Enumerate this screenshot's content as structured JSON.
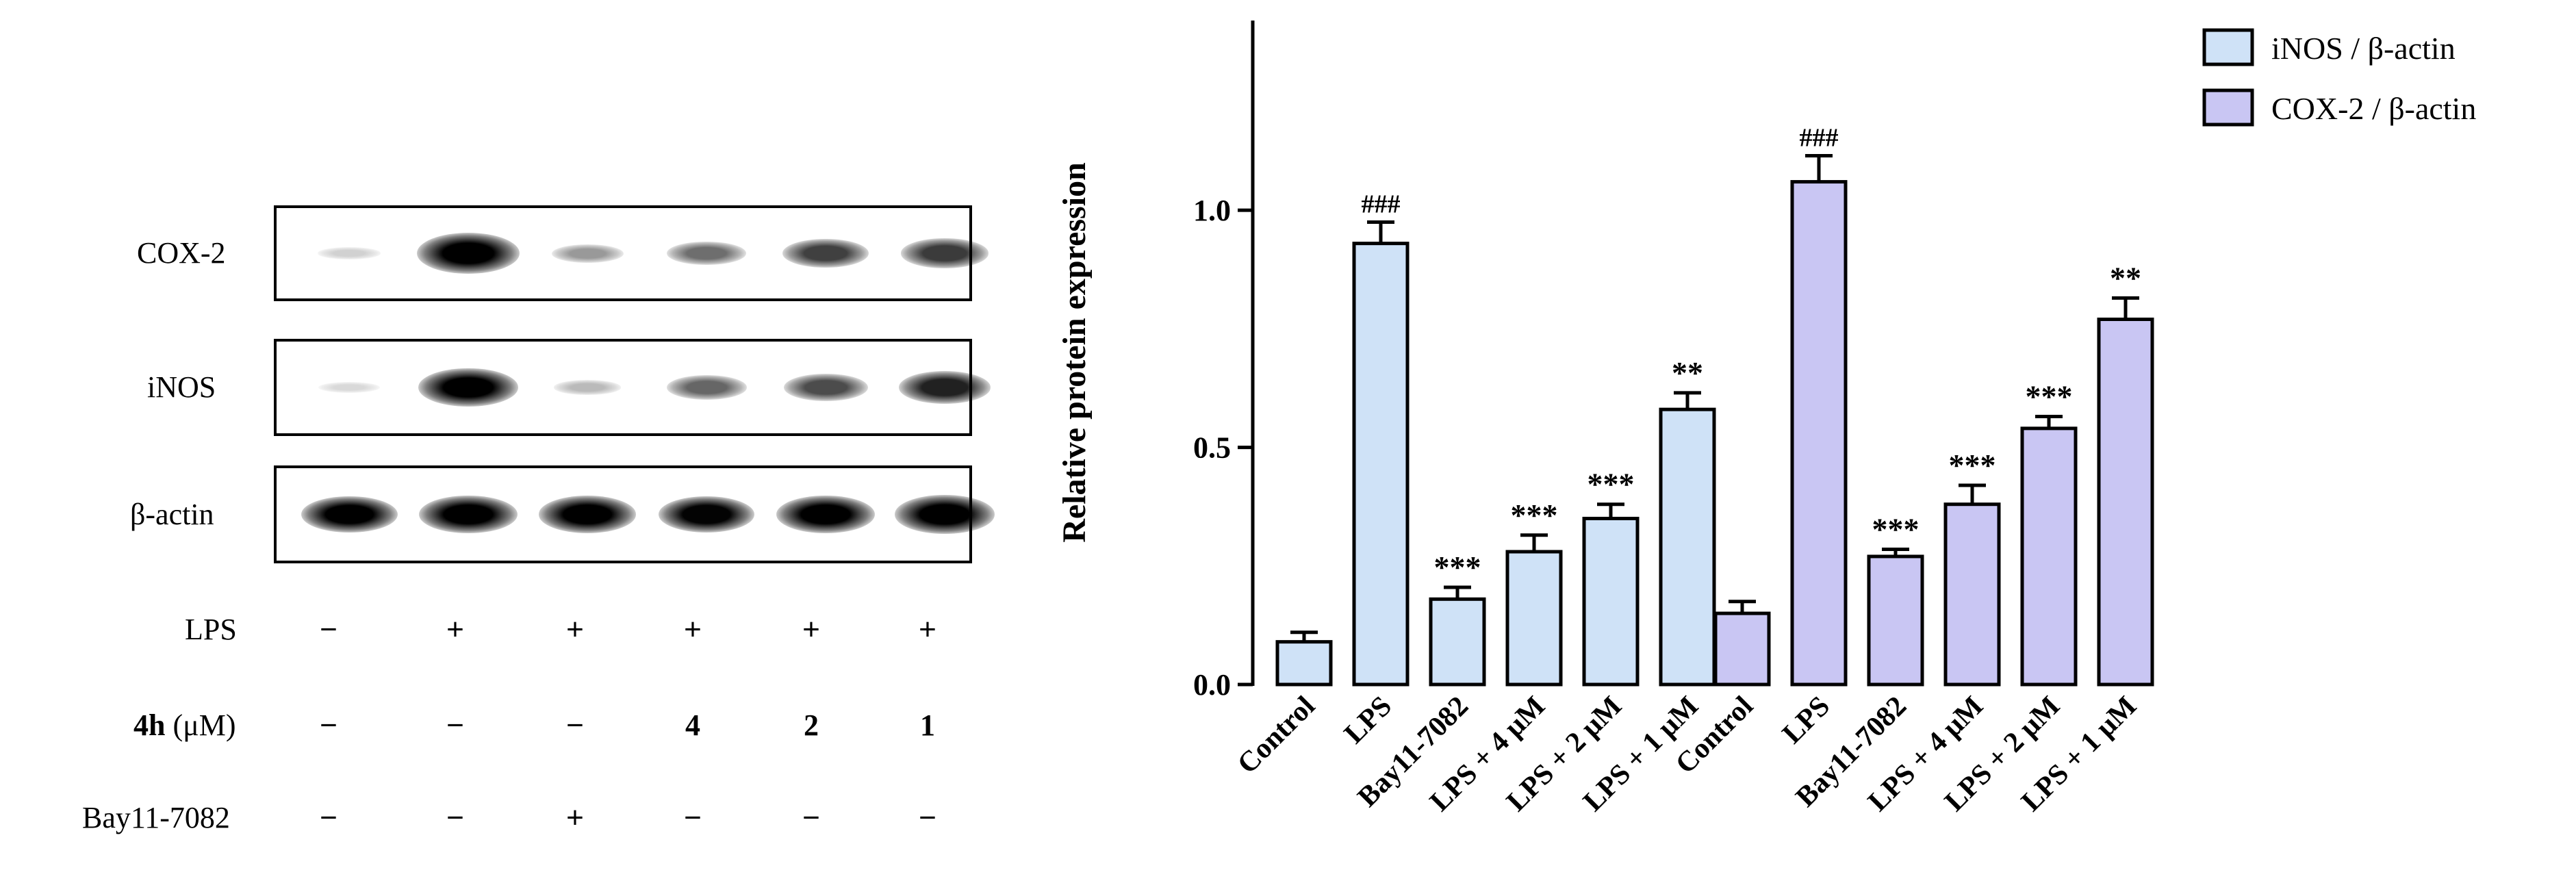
{
  "blot": {
    "row_labels": [
      "COX-2",
      "iNOS",
      "β-actin"
    ],
    "bands": {
      "COX-2": [
        0.03,
        1.0,
        0.25,
        0.42,
        0.6,
        0.62
      ],
      "iNOS": [
        0.0,
        0.92,
        0.12,
        0.45,
        0.55,
        0.72
      ],
      "β-actin": [
        0.85,
        0.9,
        0.88,
        0.84,
        0.9,
        0.92
      ]
    },
    "treatments": [
      {
        "label": "LPS",
        "values": [
          "−",
          "+",
          "+",
          "+",
          "+",
          "+"
        ]
      },
      {
        "label_bold": "4h",
        "label_rest": " (μM)",
        "values": [
          "−",
          "−",
          "−",
          "4",
          "2",
          "1"
        ]
      },
      {
        "label": "Bay11-7082",
        "values": [
          "−",
          "−",
          "+",
          "−",
          "−",
          "−"
        ]
      }
    ]
  },
  "chart_data": {
    "type": "bar",
    "ylabel": "Relative protein expression",
    "ylim": [
      0.0,
      1.4
    ],
    "yticks": [
      "0.0",
      "0.5",
      "1.0"
    ],
    "ytick_values": [
      0.0,
      0.5,
      1.0
    ],
    "categories": [
      "Control",
      "LPS",
      "Bay11-7082",
      "LPS + 4 μM",
      "LPS + 2 μM",
      "LPS + 1 μM"
    ],
    "legend_position": "top-right",
    "series": [
      {
        "name": "iNOS / β-actin",
        "color": "#cfe2f7",
        "values": [
          0.09,
          0.93,
          0.18,
          0.28,
          0.35,
          0.58
        ],
        "errors": [
          0.02,
          0.045,
          0.025,
          0.035,
          0.03,
          0.035
        ],
        "annotations": [
          "",
          "###",
          "***",
          "***",
          "***",
          "**"
        ]
      },
      {
        "name": "COX-2 / β-actin",
        "color": "#c9c6f3",
        "values": [
          0.15,
          1.06,
          0.27,
          0.38,
          0.54,
          0.77
        ],
        "errors": [
          0.025,
          0.055,
          0.015,
          0.04,
          0.025,
          0.045
        ],
        "annotations": [
          "",
          "###",
          "***",
          "***",
          "***",
          "**"
        ]
      }
    ]
  }
}
